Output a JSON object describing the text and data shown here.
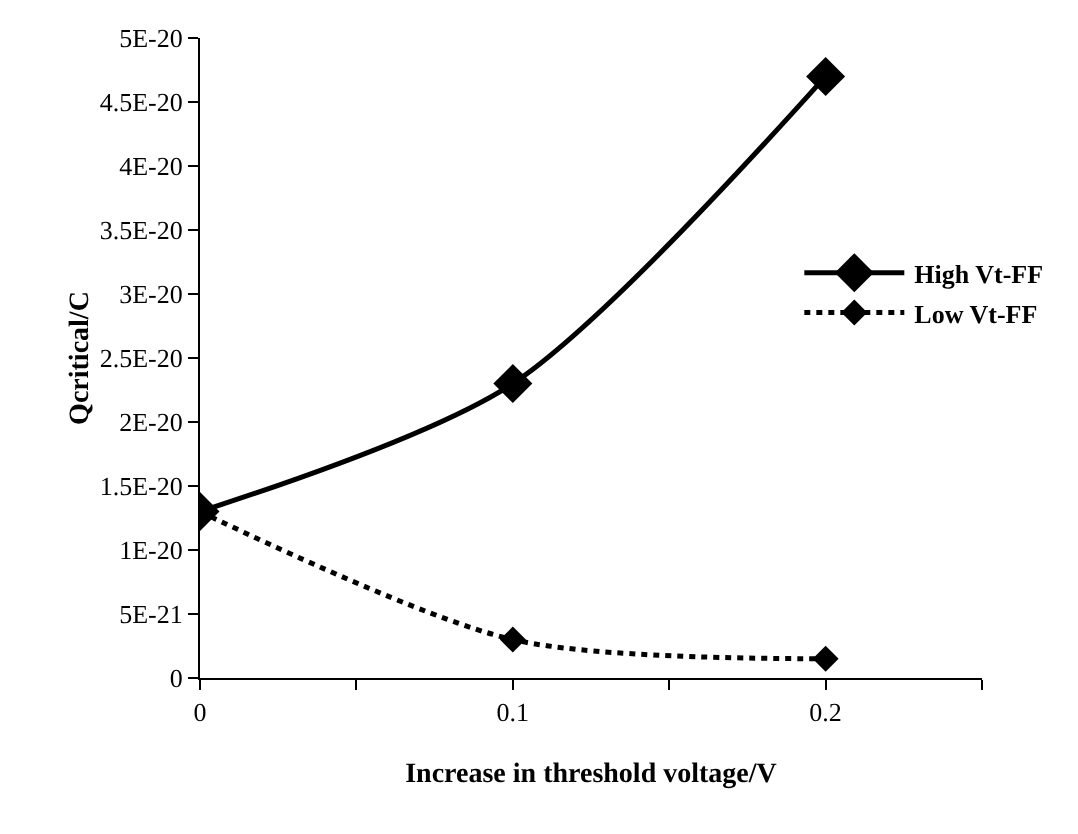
{
  "chart_data": {
    "type": "line",
    "xlabel": "Increase in threshold voltage/V",
    "ylabel": "Qcritical/C",
    "x": [
      0,
      0.1,
      0.2
    ],
    "series": [
      {
        "name": "High Vt-FF",
        "color": "#000000",
        "line_style": "solid",
        "values": [
          1.3e-20,
          2.3e-20,
          4.7e-20
        ]
      },
      {
        "name": "Low Vt-FF",
        "color": "#000000",
        "line_style": "dotted",
        "values": [
          1.3e-20,
          3e-21,
          1.5e-21
        ]
      }
    ],
    "xlim": [
      0,
      0.25
    ],
    "xticks": [
      0,
      {
        "value": 0.05,
        "label": null
      },
      0.1,
      {
        "value": 0.15,
        "label": null
      },
      0.2,
      {
        "value": 0.25,
        "label": null
      }
    ],
    "ylim": [
      0,
      5e-20
    ],
    "yticks": [
      {
        "value": 0,
        "label": "0"
      },
      {
        "value": 5e-21,
        "label": "5E-21"
      },
      {
        "value": 1e-20,
        "label": "1E-20"
      },
      {
        "value": 1.5e-20,
        "label": "1.5E-20"
      },
      {
        "value": 2e-20,
        "label": "2E-20"
      },
      {
        "value": 2.5e-20,
        "label": "2.5E-20"
      },
      {
        "value": 3e-20,
        "label": "3E-20"
      },
      {
        "value": 3.5e-20,
        "label": "3.5E-20"
      },
      {
        "value": 4e-20,
        "label": "4E-20"
      },
      {
        "value": 4.5e-20,
        "label": "4.5E-20"
      },
      {
        "value": 5e-20,
        "label": "5E-20"
      }
    ],
    "marker": "diamond",
    "grid": false,
    "legend": "right"
  }
}
